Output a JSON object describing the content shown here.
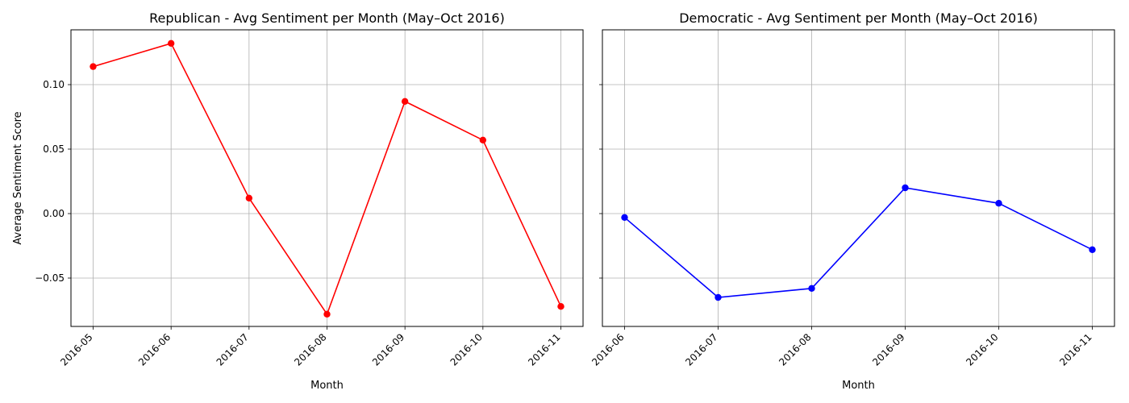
{
  "chart_data": [
    {
      "type": "line",
      "title": "Republican - Avg Sentiment per Month (May–Oct 2016)",
      "xlabel": "Month",
      "ylabel": "Average Sentiment Score",
      "x": [
        "2016-05",
        "2016-06",
        "2016-07",
        "2016-08",
        "2016-09",
        "2016-10",
        "2016-11"
      ],
      "series": [
        {
          "values": [
            0.114,
            0.132,
            0.012,
            -0.078,
            0.087,
            0.057,
            -0.072
          ],
          "color": "#ff0000"
        }
      ],
      "ylim": [
        -0.0875,
        0.1425
      ],
      "yticks": [
        -0.05,
        0.0,
        0.05,
        0.1
      ],
      "ytick_labels": [
        "−0.05",
        "0.00",
        "0.05",
        "0.10"
      ],
      "grid": true,
      "marker": "circle"
    },
    {
      "type": "line",
      "title": "Democratic - Avg Sentiment per Month (May–Oct 2016)",
      "xlabel": "Month",
      "ylabel": "",
      "x": [
        "2016-06",
        "2016-07",
        "2016-08",
        "2016-09",
        "2016-10",
        "2016-11"
      ],
      "series": [
        {
          "values": [
            -0.003,
            -0.065,
            -0.058,
            0.02,
            0.008,
            -0.028
          ],
          "color": "#0000ff"
        }
      ],
      "ylim": [
        -0.0875,
        0.1425
      ],
      "yticks": [
        -0.05,
        0.0,
        0.05,
        0.1
      ],
      "ytick_labels": [
        "",
        "",
        "",
        ""
      ],
      "grid": true,
      "marker": "circle",
      "sharey": true
    }
  ]
}
